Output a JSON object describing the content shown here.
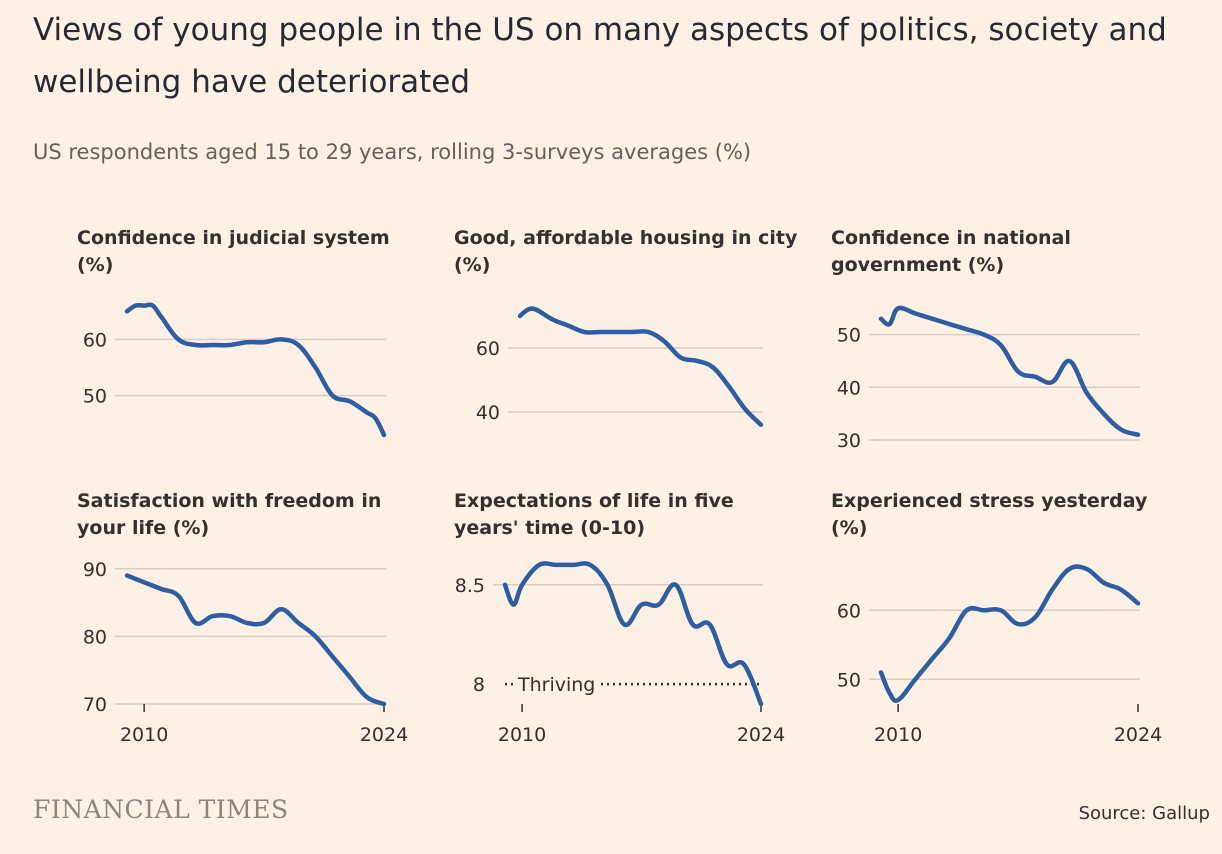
{
  "header": {
    "title": "Views of young people in the US on many aspects of politics, society and wellbeing have deteriorated",
    "subtitle": "US respondents aged 15 to 29 years, rolling 3-surveys averages (%)"
  },
  "footer": {
    "brand": "FINANCIAL TIMES",
    "source": "Source: Gallup"
  },
  "colors": {
    "line": "#2e5da3",
    "grid": "#d9ccc0",
    "text": "#33302e"
  },
  "chart_data": [
    {
      "type": "line",
      "title_lines": [
        "Confidence in judicial system",
        "(%)"
      ],
      "x": [
        2009,
        2009.5,
        2010,
        2010.5,
        2011,
        2012,
        2013,
        2014,
        2015,
        2016,
        2017,
        2018,
        2019,
        2020,
        2021,
        2022,
        2023,
        2023.5,
        2024
      ],
      "values": [
        65,
        66,
        66,
        66,
        64,
        60,
        59,
        59,
        59,
        59.5,
        59.5,
        60,
        59,
        55,
        50,
        49,
        47,
        46,
        43
      ],
      "xlim": [
        2009,
        2024
      ],
      "ylim": [
        43,
        67
      ],
      "yticks": [
        50,
        60
      ],
      "xticks": [],
      "xtick_labels": []
    },
    {
      "type": "line",
      "title_lines": [
        "Good, affordable housing in city",
        "(%)"
      ],
      "x": [
        2009,
        2009.5,
        2010,
        2011,
        2012,
        2013,
        2014,
        2015,
        2016,
        2017,
        2018,
        2019,
        2020,
        2021,
        2022,
        2023,
        2024
      ],
      "values": [
        70,
        72,
        72,
        69,
        67,
        65,
        65,
        65,
        65,
        65,
        62,
        57,
        56,
        54,
        48,
        41,
        36
      ],
      "xlim": [
        2009,
        2024
      ],
      "ylim": [
        35,
        75
      ],
      "yticks": [
        40,
        60
      ],
      "xticks": [],
      "xtick_labels": []
    },
    {
      "type": "line",
      "title_lines": [
        "Confidence in national",
        "government (%)"
      ],
      "x": [
        2009,
        2009.5,
        2010,
        2011,
        2012,
        2013,
        2014,
        2015,
        2016,
        2017,
        2018,
        2019,
        2020,
        2021,
        2022,
        2023,
        2024
      ],
      "values": [
        53,
        52,
        55,
        54,
        53,
        52,
        51,
        50,
        48,
        43,
        42,
        41,
        45,
        39,
        35,
        32,
        31
      ],
      "xlim": [
        2009,
        2024
      ],
      "ylim": [
        30,
        56
      ],
      "yticks": [
        30,
        40,
        50
      ],
      "xticks": [],
      "xtick_labels": []
    },
    {
      "type": "line",
      "title_lines": [
        "Satisfaction with freedom in",
        "your life (%)"
      ],
      "x": [
        2009,
        2010,
        2011,
        2012,
        2013,
        2014,
        2015,
        2016,
        2017,
        2018,
        2019,
        2020,
        2021,
        2022,
        2023,
        2024
      ],
      "values": [
        89,
        88,
        87,
        86,
        82,
        83,
        83,
        82,
        82,
        84,
        82,
        80,
        77,
        74,
        71,
        70
      ],
      "xlim": [
        2009,
        2024
      ],
      "ylim": [
        70,
        91
      ],
      "yticks": [
        70,
        80,
        90
      ],
      "xticks": [
        2010,
        2024
      ],
      "xtick_labels": [
        "2010",
        "2024"
      ]
    },
    {
      "type": "line",
      "title_lines": [
        "Expectations of life in five",
        "years' time (0-10)"
      ],
      "x": [
        2009,
        2009.5,
        2010,
        2011,
        2012,
        2013,
        2014,
        2015,
        2016,
        2017,
        2018,
        2019,
        2020,
        2021,
        2022,
        2023,
        2024
      ],
      "values": [
        8.5,
        8.4,
        8.5,
        8.6,
        8.6,
        8.6,
        8.6,
        8.5,
        8.3,
        8.4,
        8.4,
        8.5,
        8.3,
        8.3,
        8.1,
        8.1,
        7.9
      ],
      "xlim": [
        2009,
        2024
      ],
      "ylim": [
        7.9,
        8.65
      ],
      "yticks": [
        8,
        8.5
      ],
      "xticks": [
        2010,
        2024
      ],
      "xtick_labels": [
        "2010",
        "2024"
      ],
      "reference": {
        "y": 8,
        "label": "Thriving"
      }
    },
    {
      "type": "line",
      "title_lines": [
        "Experienced stress yesterday",
        "(%)"
      ],
      "x": [
        2009,
        2009.5,
        2010,
        2011,
        2012,
        2013,
        2014,
        2015,
        2016,
        2017,
        2018,
        2019,
        2020,
        2021,
        2022,
        2023,
        2024
      ],
      "values": [
        51,
        48,
        47,
        50,
        53,
        56,
        60,
        60,
        60,
        58,
        59,
        63,
        66,
        66,
        64,
        63,
        61
      ],
      "xlim": [
        2009,
        2024
      ],
      "ylim": [
        47,
        67
      ],
      "yticks": [
        50,
        60
      ],
      "xticks": [
        2010,
        2024
      ],
      "xtick_labels": [
        "2010",
        "2024"
      ]
    }
  ]
}
